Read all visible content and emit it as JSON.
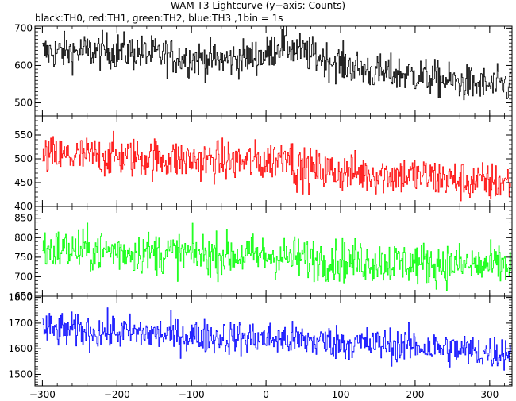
{
  "chart_data": {
    "type": "line",
    "title": "WAM T3 Lightcurve (y−axis: Counts)",
    "subtitle": "black:TH0, red:TH1, green:TH2, blue:TH3 ,1bin = 1s",
    "xlim": [
      -310,
      330
    ],
    "xticks": [
      -300,
      -200,
      -100,
      0,
      100,
      200,
      300
    ],
    "x_range_data": [
      -300,
      328
    ],
    "grid": false,
    "panels": [
      {
        "series": "TH0",
        "color": "#000000",
        "ylim": [
          465,
          705
        ],
        "yticks": [
          500,
          600,
          700
        ],
        "profile": [
          [
            -300,
            635
          ],
          [
            -200,
            640
          ],
          [
            -100,
            618
          ],
          [
            -50,
            615
          ],
          [
            0,
            628
          ],
          [
            20,
            660
          ],
          [
            40,
            640
          ],
          [
            100,
            605
          ],
          [
            150,
            580
          ],
          [
            200,
            575
          ],
          [
            250,
            555
          ],
          [
            300,
            545
          ],
          [
            328,
            548
          ]
        ],
        "noise": 24
      },
      {
        "series": "TH1",
        "color": "#ff0000",
        "ylim": [
          400,
          590
        ],
        "yticks": [
          400,
          450,
          500,
          550
        ],
        "profile": [
          [
            -300,
            505
          ],
          [
            -200,
            505
          ],
          [
            -100,
            497
          ],
          [
            0,
            493
          ],
          [
            20,
            505
          ],
          [
            30,
            520
          ],
          [
            38,
            480
          ],
          [
            100,
            472
          ],
          [
            150,
            468
          ],
          [
            200,
            465
          ],
          [
            250,
            455
          ],
          [
            300,
            450
          ],
          [
            328,
            452
          ]
        ],
        "noise": 21
      },
      {
        "series": "TH2",
        "color": "#00ff00",
        "ylim": [
          650,
          880
        ],
        "yticks": [
          650,
          700,
          750,
          800,
          850
        ],
        "profile": [
          [
            -300,
            770
          ],
          [
            -200,
            765
          ],
          [
            -100,
            758
          ],
          [
            0,
            753
          ],
          [
            100,
            742
          ],
          [
            200,
            735
          ],
          [
            300,
            728
          ],
          [
            328,
            730
          ]
        ],
        "noise": 27
      },
      {
        "series": "TH3",
        "color": "#0000ff",
        "ylim": [
          1455,
          1805
        ],
        "yticks": [
          1500,
          1600,
          1700,
          1800
        ],
        "profile": [
          [
            -300,
            1675
          ],
          [
            -200,
            1665
          ],
          [
            -100,
            1650
          ],
          [
            0,
            1640
          ],
          [
            100,
            1625
          ],
          [
            200,
            1610
          ],
          [
            300,
            1585
          ],
          [
            328,
            1590
          ]
        ],
        "noise": 33
      }
    ]
  }
}
